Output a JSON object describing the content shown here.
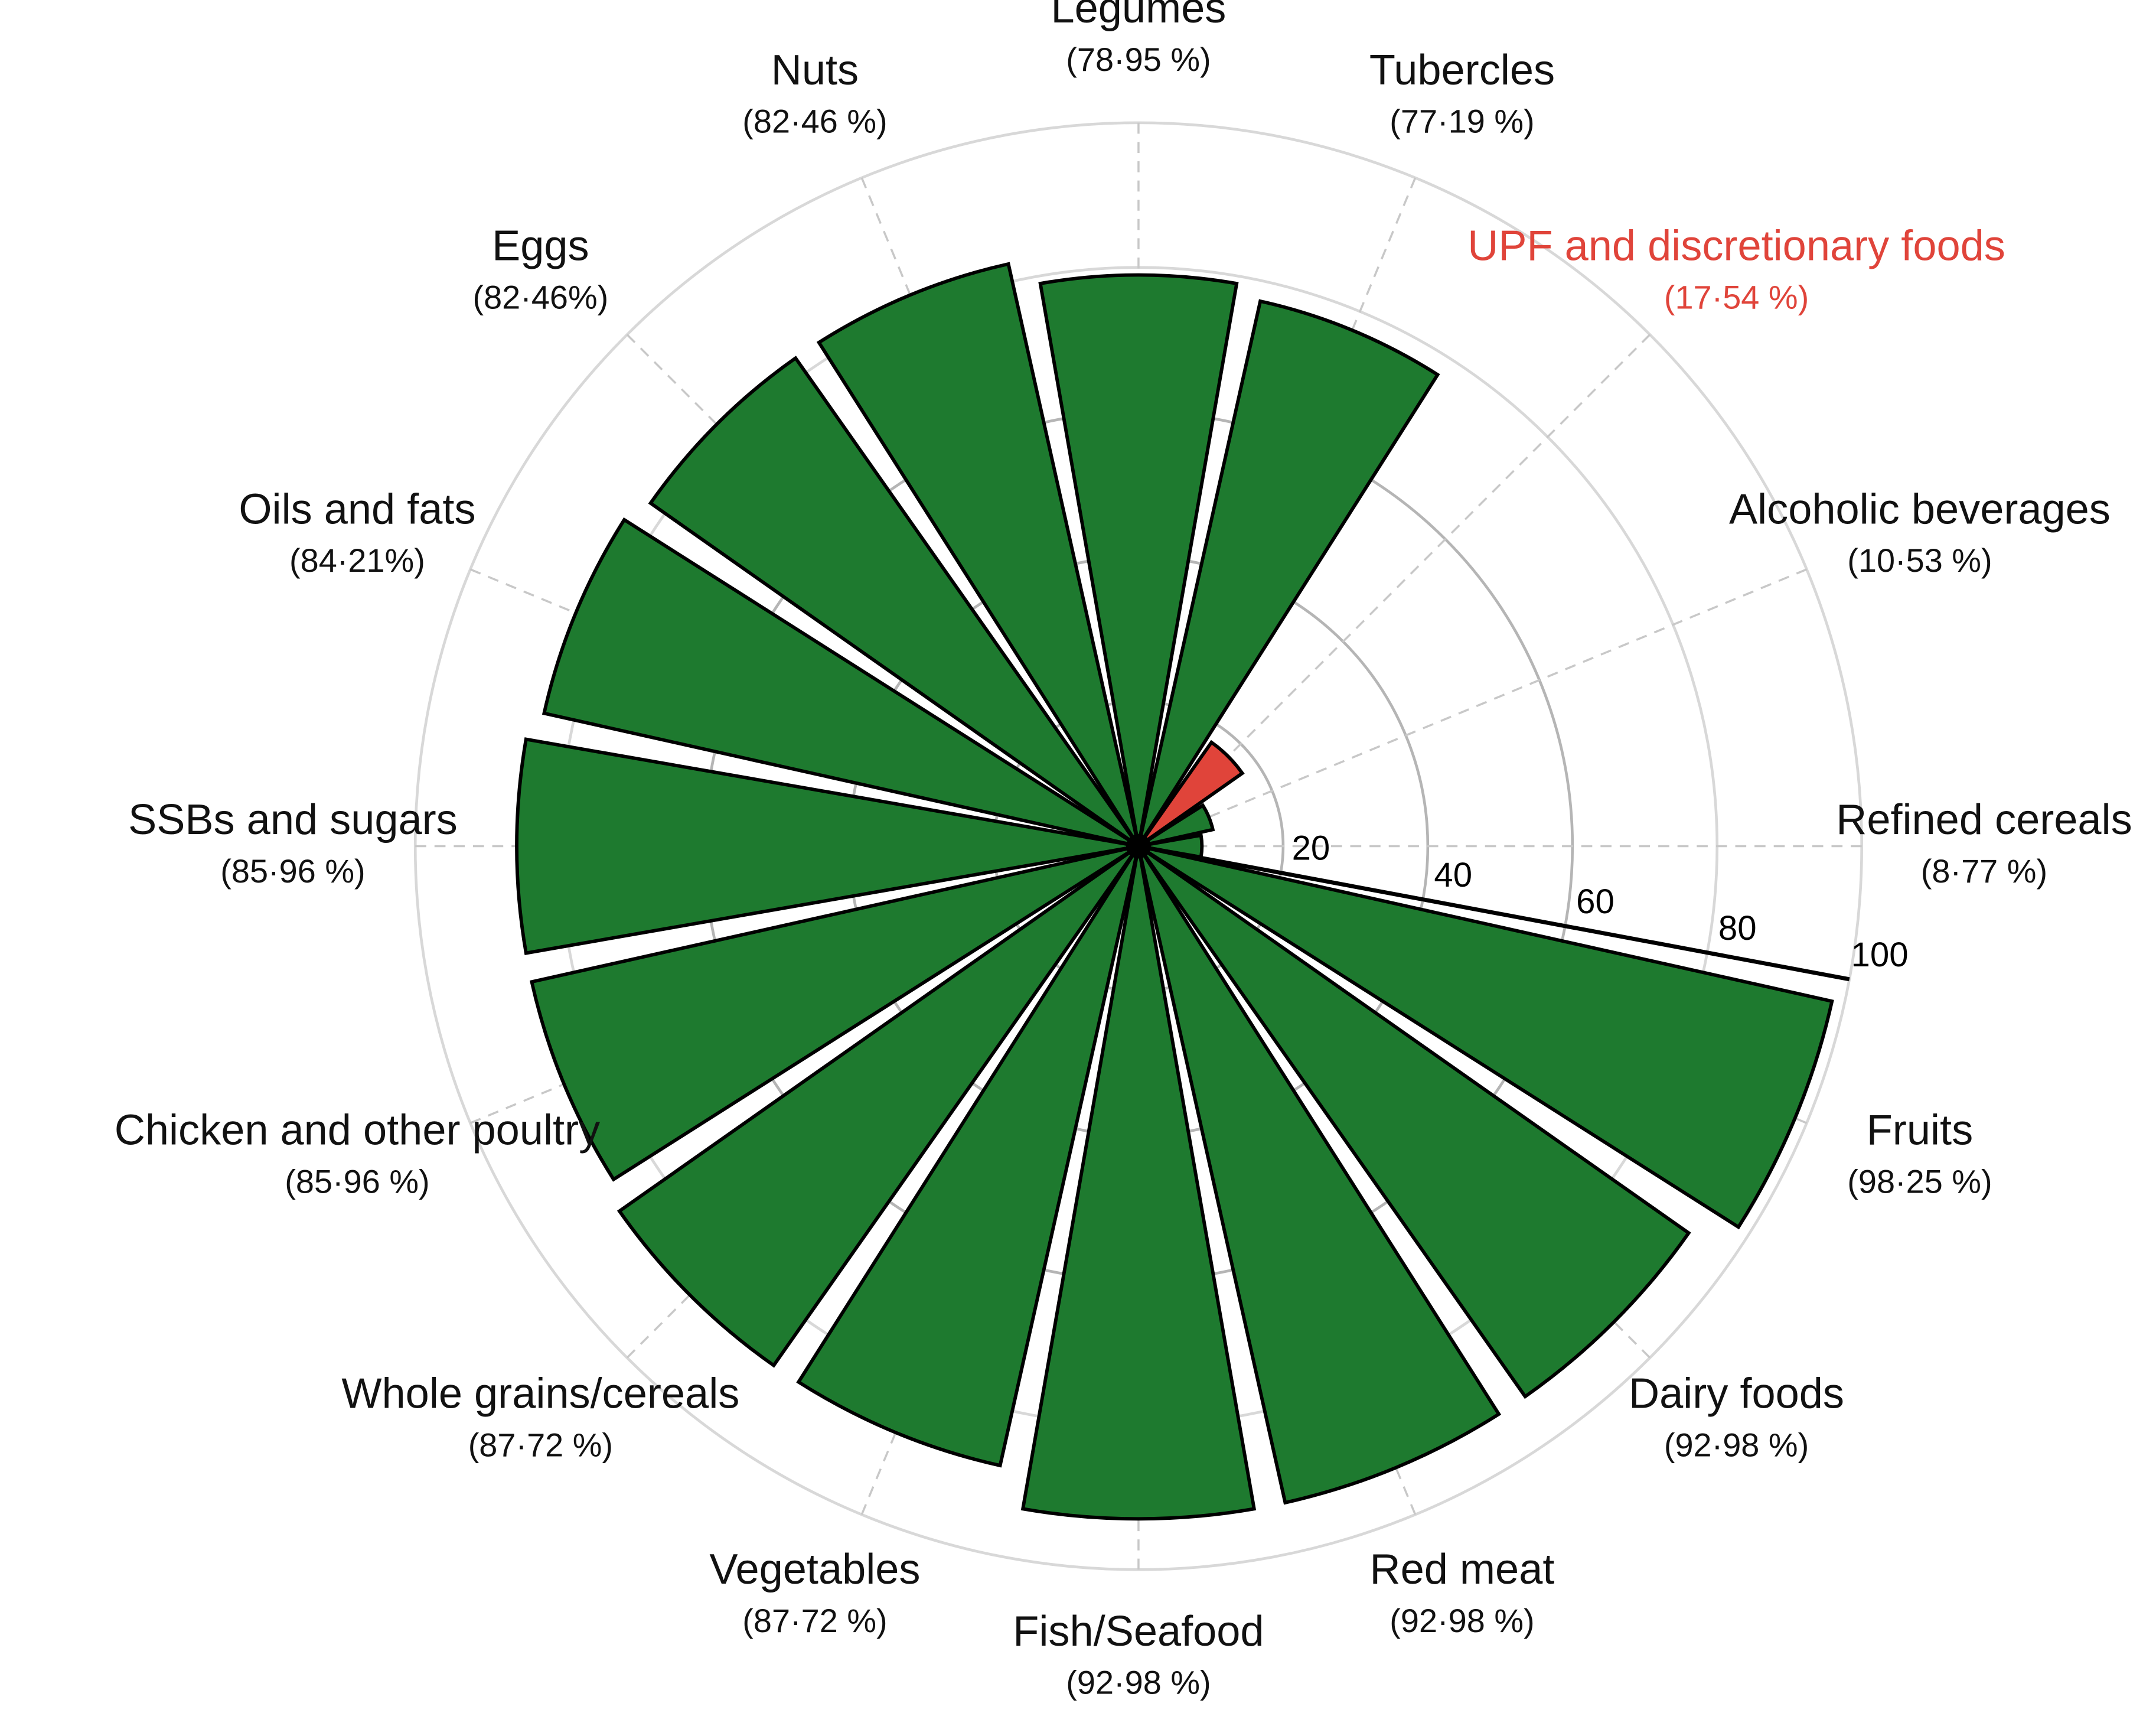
{
  "chart_data": {
    "type": "polar_bar",
    "categories": [
      "Refined cereals",
      "Alcoholic beverages",
      "UPF and discretionary foods",
      "Tubercles",
      "Legumes",
      "Nuts",
      "Eggs",
      "Oils and fats",
      "SSBs and sugars",
      "Chicken and other poultry",
      "Whole grains/cereals",
      "Vegetables",
      "Fish/Seafood",
      "Red meat",
      "Dairy foods",
      "Fruits"
    ],
    "values": [
      8.77,
      10.53,
      17.54,
      77.19,
      78.95,
      82.46,
      82.46,
      84.21,
      85.96,
      85.96,
      87.72,
      87.72,
      92.98,
      92.98,
      92.98,
      98.25
    ],
    "value_labels": [
      "(8·77 %)",
      "(10·53 %)",
      "(17·54 %)",
      "(77·19 %)",
      "(78·95 %)",
      "(82·46 %)",
      "(82·46%)",
      "(84·21%)",
      "(85·96 %)",
      "(85·96 %)",
      "(87·72 %)",
      "(87·72 %)",
      "(92·98 %)",
      "(92·98 %)",
      "(92·98 %)",
      "(98·25 %)"
    ],
    "colors": [
      "#1e7a2f",
      "#1e7a2f",
      "#e0443a",
      "#1e7a2f",
      "#1e7a2f",
      "#1e7a2f",
      "#1e7a2f",
      "#1e7a2f",
      "#1e7a2f",
      "#1e7a2f",
      "#1e7a2f",
      "#1e7a2f",
      "#1e7a2f",
      "#1e7a2f",
      "#1e7a2f",
      "#1e7a2f"
    ],
    "label_colors": [
      "#111111",
      "#111111",
      "#e0443a",
      "#111111",
      "#111111",
      "#111111",
      "#111111",
      "#111111",
      "#111111",
      "#111111",
      "#111111",
      "#111111",
      "#111111",
      "#111111",
      "#111111",
      "#111111"
    ],
    "rlim": [
      0,
      100
    ],
    "rticks": [
      20,
      40,
      60,
      80,
      100
    ],
    "grid": true
  }
}
